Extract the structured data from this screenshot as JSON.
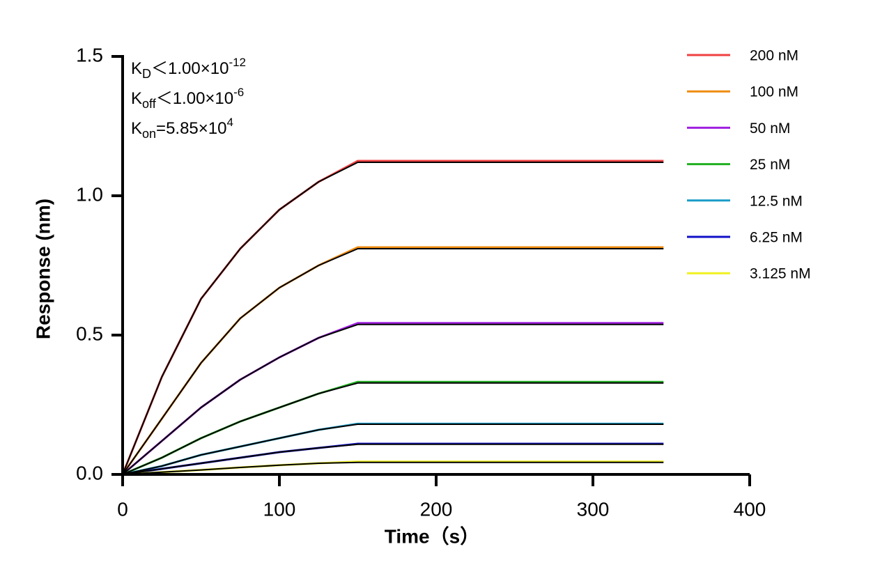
{
  "chart_data": {
    "type": "line",
    "x_label": "Time（s）",
    "y_label": "Response (nm)",
    "annotations": [
      {
        "symbol": "K",
        "sub": "D",
        "text": "＜1.00×10",
        "sup": "-12"
      },
      {
        "symbol": "K",
        "sub": "off",
        "text": "＜1.00×10",
        "sup": "-6"
      },
      {
        "symbol": "K",
        "sub": "on",
        "text": "=5.85×10",
        "sup": "4"
      }
    ],
    "x": [
      0,
      25,
      50,
      75,
      100,
      125,
      150,
      200,
      250,
      300,
      345
    ],
    "xlim": [
      0,
      400
    ],
    "xticks": [
      0,
      100,
      200,
      300,
      400
    ],
    "ylim": [
      0,
      1.5
    ],
    "yticks": [
      {
        "value": 0,
        "label": "0.0"
      },
      {
        "value": 0.5,
        "label": "0.5"
      },
      {
        "value": 1,
        "label": "1.0"
      },
      {
        "value": 1.5,
        "label": "1.5"
      }
    ],
    "series": [
      {
        "name": "200 nM",
        "color": "#f04040",
        "values": [
          0,
          0.35,
          0.63,
          0.81,
          0.95,
          1.05,
          1.125,
          1.125,
          1.125,
          1.125,
          1.125
        ]
      },
      {
        "name": "100 nM",
        "color": "#f08c10",
        "values": [
          0,
          0.2,
          0.4,
          0.56,
          0.67,
          0.75,
          0.815,
          0.815,
          0.815,
          0.815,
          0.815
        ]
      },
      {
        "name": "50 nM",
        "color": "#a020e0",
        "values": [
          0,
          0.12,
          0.24,
          0.34,
          0.42,
          0.49,
          0.543,
          0.543,
          0.543,
          0.543,
          0.543
        ]
      },
      {
        "name": "25 nM",
        "color": "#20b020",
        "values": [
          0,
          0.06,
          0.13,
          0.19,
          0.24,
          0.29,
          0.332,
          0.332,
          0.332,
          0.332,
          0.332
        ]
      },
      {
        "name": "12.5 nM",
        "color": "#1a9cc8",
        "values": [
          0,
          0.03,
          0.07,
          0.1,
          0.13,
          0.16,
          0.182,
          0.182,
          0.182,
          0.182,
          0.182
        ]
      },
      {
        "name": "6.25 nM",
        "color": "#1010c8",
        "values": [
          0,
          0.02,
          0.04,
          0.06,
          0.08,
          0.095,
          0.11,
          0.11,
          0.11,
          0.11,
          0.11
        ]
      },
      {
        "name": "3.125 nM",
        "color": "#f0f020",
        "values": [
          0,
          0.008,
          0.016,
          0.025,
          0.033,
          0.04,
          0.046,
          0.046,
          0.046,
          0.046,
          0.046
        ]
      }
    ],
    "fit_color": "#000000",
    "fits": [
      {
        "values": [
          0,
          0.35,
          0.63,
          0.81,
          0.95,
          1.05,
          1.12,
          1.12,
          1.12,
          1.12,
          1.12
        ]
      },
      {
        "values": [
          0,
          0.2,
          0.4,
          0.56,
          0.67,
          0.75,
          0.81,
          0.81,
          0.81,
          0.81,
          0.81
        ]
      },
      {
        "values": [
          0,
          0.12,
          0.24,
          0.34,
          0.42,
          0.49,
          0.538,
          0.538,
          0.538,
          0.538,
          0.538
        ]
      },
      {
        "values": [
          0,
          0.06,
          0.13,
          0.19,
          0.24,
          0.29,
          0.328,
          0.328,
          0.328,
          0.328,
          0.328
        ]
      },
      {
        "values": [
          0,
          0.03,
          0.07,
          0.1,
          0.13,
          0.16,
          0.18,
          0.18,
          0.18,
          0.18,
          0.18
        ]
      },
      {
        "values": [
          0,
          0.02,
          0.04,
          0.06,
          0.08,
          0.095,
          0.108,
          0.108,
          0.108,
          0.108,
          0.108
        ]
      },
      {
        "values": [
          0,
          0.008,
          0.016,
          0.025,
          0.033,
          0.04,
          0.043,
          0.043,
          0.043,
          0.043,
          0.043
        ]
      }
    ]
  }
}
